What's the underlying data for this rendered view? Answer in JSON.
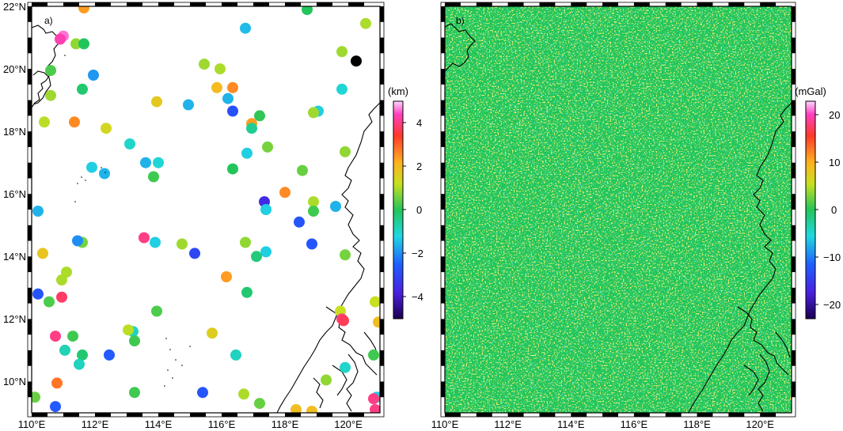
{
  "panels": [
    {
      "label": "a)",
      "x_ticks": [
        "110°E",
        "112°E",
        "114°E",
        "116°E",
        "118°E",
        "120°E"
      ],
      "y_ticks": [
        "22°N",
        "20°N",
        "18°N",
        "16°N",
        "14°N",
        "12°N",
        "10°N"
      ],
      "colorbar": {
        "title": "(km)",
        "ticks": [
          "4",
          "2",
          "0",
          "−2",
          "−4"
        ],
        "range": [
          -5,
          5
        ]
      },
      "points": [
        {
          "lon": 111.65,
          "lat": 21.95,
          "v": 2.4
        },
        {
          "lon": 111.0,
          "lat": 21.05,
          "v": 4.6
        },
        {
          "lon": 110.9,
          "lat": 20.95,
          "v": 4.3
        },
        {
          "lon": 111.4,
          "lat": 20.8,
          "v": 0.8
        },
        {
          "lon": 111.65,
          "lat": 20.8,
          "v": 0
        },
        {
          "lon": 110.6,
          "lat": 19.95,
          "v": 0.3
        },
        {
          "lon": 111.95,
          "lat": 19.8,
          "v": -1.9
        },
        {
          "lon": 111.6,
          "lat": 19.35,
          "v": -0.2
        },
        {
          "lon": 110.6,
          "lat": 19.15,
          "v": 0.9
        },
        {
          "lon": 110.4,
          "lat": 18.3,
          "v": 1.1
        },
        {
          "lon": 111.35,
          "lat": 18.3,
          "v": 2.6
        },
        {
          "lon": 112.35,
          "lat": 18.1,
          "v": 1.4
        },
        {
          "lon": 113.1,
          "lat": 17.6,
          "v": -1.0
        },
        {
          "lon": 111.9,
          "lat": 16.85,
          "v": -1.3
        },
        {
          "lon": 112.3,
          "lat": 16.65,
          "v": -1.6
        },
        {
          "lon": 113.6,
          "lat": 17.0,
          "v": -1.6
        },
        {
          "lon": 114.0,
          "lat": 17.0,
          "v": -1.1
        },
        {
          "lon": 113.85,
          "lat": 16.55,
          "v": 0.2
        },
        {
          "lon": 110.2,
          "lat": 15.45,
          "v": -1.6
        },
        {
          "lon": 111.6,
          "lat": 14.45,
          "v": 0.6
        },
        {
          "lon": 111.45,
          "lat": 14.5,
          "v": -2.0
        },
        {
          "lon": 110.35,
          "lat": 14.1,
          "v": 1.8
        },
        {
          "lon": 111.1,
          "lat": 13.5,
          "v": 1.0
        },
        {
          "lon": 110.95,
          "lat": 13.25,
          "v": 1.0
        },
        {
          "lon": 110.2,
          "lat": 12.8,
          "v": -2.7
        },
        {
          "lon": 110.55,
          "lat": 12.55,
          "v": 0.3
        },
        {
          "lon": 110.95,
          "lat": 12.7,
          "v": 3.8
        },
        {
          "lon": 110.75,
          "lat": 11.45,
          "v": 4.0
        },
        {
          "lon": 111.3,
          "lat": 11.45,
          "v": 0.2
        },
        {
          "lon": 111.05,
          "lat": 11.0,
          "v": -0.8
        },
        {
          "lon": 111.6,
          "lat": 10.85,
          "v": -0.2
        },
        {
          "lon": 111.5,
          "lat": 10.55,
          "v": -0.9
        },
        {
          "lon": 112.45,
          "lat": 10.85,
          "v": -2.6
        },
        {
          "lon": 110.8,
          "lat": 9.95,
          "v": 2.8
        },
        {
          "lon": 110.1,
          "lat": 9.5,
          "v": 0.5
        },
        {
          "lon": 110.75,
          "lat": 9.2,
          "v": -2.6
        },
        {
          "lon": 113.2,
          "lat": 11.6,
          "v": -0.9
        },
        {
          "lon": 113.05,
          "lat": 11.65,
          "v": 1.1
        },
        {
          "lon": 113.25,
          "lat": 11.3,
          "v": 0.2
        },
        {
          "lon": 113.25,
          "lat": 9.65,
          "v": 0.2
        },
        {
          "lon": 113.95,
          "lat": 12.25,
          "v": 0.3
        },
        {
          "lon": 113.55,
          "lat": 14.6,
          "v": 4.0
        },
        {
          "lon": 113.9,
          "lat": 14.45,
          "v": -1.3
        },
        {
          "lon": 114.75,
          "lat": 14.4,
          "v": 0.9
        },
        {
          "lon": 115.15,
          "lat": 14.1,
          "v": -3.0
        },
        {
          "lon": 113.95,
          "lat": 18.95,
          "v": 1.7
        },
        {
          "lon": 114.95,
          "lat": 18.85,
          "v": -1.6
        },
        {
          "lon": 115.45,
          "lat": 20.15,
          "v": 0.9
        },
        {
          "lon": 115.95,
          "lat": 20.0,
          "v": 1.0
        },
        {
          "lon": 115.85,
          "lat": 19.4,
          "v": 2.0
        },
        {
          "lon": 116.35,
          "lat": 19.4,
          "v": 2.6
        },
        {
          "lon": 116.2,
          "lat": 19.05,
          "v": -1.6
        },
        {
          "lon": 116.35,
          "lat": 18.65,
          "v": -2.8
        },
        {
          "lon": 116.95,
          "lat": 18.25,
          "v": 2.4
        },
        {
          "lon": 116.95,
          "lat": 18.1,
          "v": -0.5
        },
        {
          "lon": 117.2,
          "lat": 18.5,
          "v": 0.1
        },
        {
          "lon": 117.45,
          "lat": 17.5,
          "v": 0.6
        },
        {
          "lon": 116.8,
          "lat": 17.3,
          "v": -1.3
        },
        {
          "lon": 116.35,
          "lat": 16.8,
          "v": 0.0
        },
        {
          "lon": 117.35,
          "lat": 15.75,
          "v": -3.6
        },
        {
          "lon": 117.4,
          "lat": 15.5,
          "v": -1.3
        },
        {
          "lon": 118.0,
          "lat": 16.05,
          "v": 2.6
        },
        {
          "lon": 118.55,
          "lat": 16.75,
          "v": 0.5
        },
        {
          "lon": 118.9,
          "lat": 15.75,
          "v": 1.0
        },
        {
          "lon": 118.9,
          "lat": 15.45,
          "v": 0.2
        },
        {
          "lon": 118.45,
          "lat": 15.1,
          "v": -2.7
        },
        {
          "lon": 118.85,
          "lat": 14.4,
          "v": -2.7
        },
        {
          "lon": 117.4,
          "lat": 14.15,
          "v": -1.3
        },
        {
          "lon": 117.1,
          "lat": 14.0,
          "v": -0.3
        },
        {
          "lon": 116.75,
          "lat": 14.45,
          "v": 0.8
        },
        {
          "lon": 116.15,
          "lat": 13.35,
          "v": 2.4
        },
        {
          "lon": 116.8,
          "lat": 12.85,
          "v": -0.2
        },
        {
          "lon": 115.7,
          "lat": 11.55,
          "v": 1.6
        },
        {
          "lon": 116.45,
          "lat": 10.85,
          "v": -0.9
        },
        {
          "lon": 116.7,
          "lat": 9.6,
          "v": 1.0
        },
        {
          "lon": 115.4,
          "lat": 9.65,
          "v": -2.7
        },
        {
          "lon": 117.2,
          "lat": 9.3,
          "v": 0.5
        },
        {
          "lon": 118.35,
          "lat": 9.1,
          "v": 1.9
        },
        {
          "lon": 118.85,
          "lat": 9.05,
          "v": 1.9
        },
        {
          "lon": 116.75,
          "lat": 21.3,
          "v": -1.5
        },
        {
          "lon": 118.7,
          "lat": 21.9,
          "v": 0.0
        },
        {
          "lon": 119.05,
          "lat": 18.65,
          "v": -1.3
        },
        {
          "lon": 118.9,
          "lat": 18.6,
          "v": 0.9
        },
        {
          "lon": 119.8,
          "lat": 19.35,
          "v": -1.1
        },
        {
          "lon": 119.8,
          "lat": 20.55,
          "v": 0.9
        },
        {
          "lon": 120.55,
          "lat": 21.45,
          "v": 1.0
        },
        {
          "lon": 120.25,
          "lat": 20.25,
          "v": -6
        },
        {
          "lon": 119.9,
          "lat": 17.35,
          "v": 0.8
        },
        {
          "lon": 119.6,
          "lat": 15.6,
          "v": -1.6
        },
        {
          "lon": 119.9,
          "lat": 14.05,
          "v": 0.6
        },
        {
          "lon": 119.75,
          "lat": 12.25,
          "v": 1.2
        },
        {
          "lon": 119.8,
          "lat": 12.0,
          "v": 4.0
        },
        {
          "lon": 119.85,
          "lat": 11.95,
          "v": 3.7
        },
        {
          "lon": 120.85,
          "lat": 12.55,
          "v": 1.2
        },
        {
          "lon": 120.95,
          "lat": 11.9,
          "v": 1.9
        },
        {
          "lon": 120.8,
          "lat": 10.85,
          "v": 0.2
        },
        {
          "lon": 119.9,
          "lat": 10.45,
          "v": -1.0
        },
        {
          "lon": 119.3,
          "lat": 10.05,
          "v": 0.8
        },
        {
          "lon": 120.9,
          "lat": 9.5,
          "v": -1.3
        },
        {
          "lon": 120.8,
          "lat": 9.45,
          "v": 4.0
        },
        {
          "lon": 120.85,
          "lat": 9.1,
          "v": 4.0
        }
      ]
    },
    {
      "label": "b)",
      "x_ticks": [
        "110°E",
        "112°E",
        "114°E",
        "116°E",
        "118°E",
        "120°E"
      ],
      "colorbar": {
        "title": "(mGal)",
        "ticks": [
          "20",
          "10",
          "0",
          "−10",
          "−20"
        ],
        "range": [
          -23,
          23
        ]
      }
    }
  ],
  "colors": {
    "noise_base": "#22c55a"
  }
}
